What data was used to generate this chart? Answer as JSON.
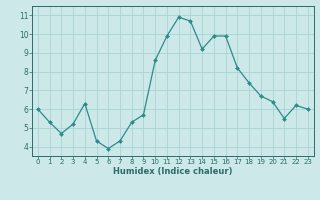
{
  "x": [
    0,
    1,
    2,
    3,
    4,
    5,
    6,
    7,
    8,
    9,
    10,
    11,
    12,
    13,
    14,
    15,
    16,
    17,
    18,
    19,
    20,
    21,
    22,
    23
  ],
  "y": [
    6.0,
    5.3,
    4.7,
    5.2,
    6.3,
    4.3,
    3.9,
    4.3,
    5.3,
    5.7,
    8.6,
    9.9,
    10.9,
    10.7,
    9.2,
    9.9,
    9.9,
    8.2,
    7.4,
    6.7,
    6.4,
    5.5,
    6.2,
    6.0
  ],
  "line_color": "#2e8b8b",
  "marker_color": "#2e8b8b",
  "bg_color": "#cce8e8",
  "grid_color": "#aad4d4",
  "axis_color": "#2e6b6b",
  "xlabel": "Humidex (Indice chaleur)",
  "ylim": [
    3.5,
    11.5
  ],
  "xlim": [
    -0.5,
    23.5
  ],
  "yticks": [
    4,
    5,
    6,
    7,
    8,
    9,
    10,
    11
  ],
  "xticks": [
    0,
    1,
    2,
    3,
    4,
    5,
    6,
    7,
    8,
    9,
    10,
    11,
    12,
    13,
    14,
    15,
    16,
    17,
    18,
    19,
    20,
    21,
    22,
    23
  ],
  "xlabel_fontsize": 6.0,
  "tick_fontsize": 5.0,
  "linewidth": 0.9,
  "markersize": 2.0
}
